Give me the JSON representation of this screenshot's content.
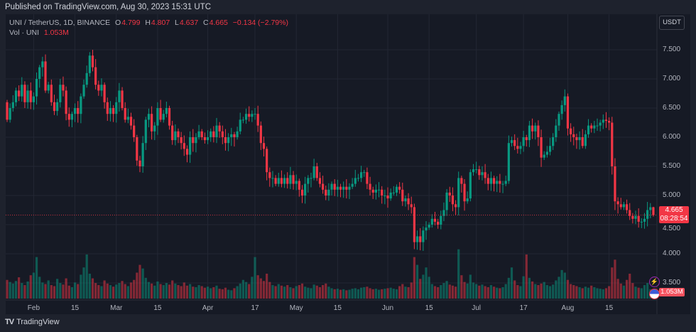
{
  "header": {
    "published": "Published on TradingView.com, Aug 30, 2023 15:31 UTC"
  },
  "legend": {
    "symbol": "UNI / TetherUS, 1D, BINANCE",
    "o_label": "O",
    "o": "4.799",
    "h_label": "H",
    "h": "4.807",
    "l_label": "L",
    "l": "4.637",
    "c_label": "C",
    "c": "4.665",
    "change": "−0.134 (−2.79%)",
    "vol_label": "Vol · UNI",
    "vol": "1.053M"
  },
  "price_axis": {
    "currency_button": "USDT",
    "ticks": [
      "7.500",
      "7.000",
      "6.500",
      "6.000",
      "5.500",
      "5.000",
      "4.500",
      "4.000",
      "3.500"
    ],
    "tick_values": [
      7.5,
      7.0,
      6.5,
      6.0,
      5.5,
      5.0,
      4.5,
      4.0,
      3.5
    ],
    "last_price": "4.665",
    "countdown": "08:28:54",
    "volume_tag": "1.053M"
  },
  "time_axis": {
    "labels": [
      "Feb",
      "15",
      "Mar",
      "15",
      "Apr",
      "17",
      "May",
      "15",
      "Jun",
      "15",
      "Jul",
      "17",
      "Aug",
      "15"
    ],
    "label_day_index": [
      9,
      23,
      37,
      51,
      68,
      84,
      98,
      112,
      129,
      143,
      159,
      175,
      190,
      204
    ]
  },
  "colors": {
    "up": "#089981",
    "down": "#f23645",
    "bg": "#161a25",
    "grid": "#232734"
  },
  "chart_data": {
    "type": "candlestick",
    "title": "UNI / TetherUS, 1D, BINANCE",
    "period": "Jan 23 2023 - Aug 30 2023",
    "first_open": 6.6,
    "close": [
      6.3,
      6.5,
      6.6,
      6.8,
      6.7,
      6.9,
      6.6,
      6.8,
      6.6,
      6.7,
      7.0,
      7.2,
      7.3,
      6.8,
      6.9,
      6.6,
      6.45,
      6.6,
      6.9,
      6.8,
      6.4,
      6.3,
      6.4,
      6.5,
      6.4,
      6.7,
      6.9,
      7.1,
      7.4,
      7.2,
      6.9,
      6.8,
      6.9,
      6.6,
      6.4,
      6.5,
      6.4,
      6.6,
      6.8,
      6.5,
      6.3,
      6.35,
      6.2,
      6.0,
      5.6,
      5.5,
      5.9,
      6.3,
      6.4,
      6.1,
      6.2,
      6.5,
      6.3,
      6.4,
      6.5,
      6.2,
      5.95,
      6.1,
      6.0,
      5.9,
      5.8,
      5.7,
      6.0,
      5.9,
      6.0,
      6.1,
      6.0,
      5.95,
      6.0,
      6.1,
      6.0,
      6.2,
      6.1,
      6.0,
      5.9,
      6.0,
      6.05,
      6.0,
      6.1,
      6.3,
      6.3,
      6.4,
      6.35,
      6.4,
      6.4,
      6.2,
      5.9,
      5.8,
      5.4,
      5.3,
      5.3,
      5.2,
      5.3,
      5.2,
      5.3,
      5.2,
      5.35,
      5.2,
      5.25,
      5.1,
      5.0,
      5.2,
      5.3,
      5.3,
      5.5,
      5.3,
      5.2,
      5.1,
      5.0,
      5.1,
      5.2,
      5.1,
      5.15,
      5.1,
      5.15,
      5.1,
      5.15,
      5.2,
      5.3,
      5.3,
      5.4,
      5.4,
      5.2,
      5.1,
      5.05,
      5.1,
      5.1,
      5.0,
      5.0,
      4.95,
      5.05,
      5.05,
      5.15,
      5.1,
      4.9,
      4.95,
      4.85,
      4.8,
      4.2,
      4.3,
      4.2,
      4.4,
      4.45,
      4.5,
      4.6,
      4.55,
      4.5,
      4.65,
      4.75,
      5.05,
      5.0,
      4.85,
      4.8,
      5.3,
      5.2,
      4.9,
      4.95,
      5.4,
      5.45,
      5.45,
      5.35,
      5.4,
      5.3,
      5.2,
      5.3,
      5.2,
      5.25,
      5.2,
      5.2,
      5.25,
      5.9,
      5.95,
      5.85,
      5.8,
      5.85,
      6.0,
      5.95,
      6.2,
      6.1,
      6.2,
      6.0,
      5.65,
      5.7,
      5.75,
      5.85,
      6.0,
      6.2,
      6.4,
      6.55,
      6.7,
      6.15,
      6.05,
      6.0,
      5.95,
      6.0,
      5.85,
      6.05,
      6.2,
      6.15,
      6.2,
      6.2,
      6.25,
      6.3,
      6.28,
      6.25,
      5.5,
      4.9,
      4.85,
      4.8,
      4.85,
      4.75,
      4.65,
      4.6,
      4.65,
      4.55,
      4.55,
      4.6,
      4.75,
      4.799,
      4.665
    ],
    "volume_millions": [
      3.6,
      3.2,
      2.9,
      3.4,
      4.1,
      3.0,
      2.6,
      3.3,
      4.5,
      5.0,
      8.0,
      4.2,
      3.1,
      2.8,
      3.5,
      2.6,
      2.4,
      3.8,
      3.0,
      2.7,
      3.9,
      2.5,
      2.2,
      3.1,
      2.8,
      4.6,
      6.0,
      8.5,
      4.8,
      3.9,
      3.0,
      2.6,
      2.4,
      3.5,
      2.9,
      2.6,
      2.3,
      2.7,
      3.0,
      3.4,
      2.8,
      2.4,
      3.1,
      3.6,
      5.0,
      6.5,
      5.8,
      4.0,
      3.2,
      2.9,
      2.5,
      3.3,
      2.8,
      2.6,
      3.0,
      2.7,
      3.5,
      2.9,
      2.6,
      2.4,
      3.1,
      2.5,
      2.8,
      2.3,
      2.2,
      2.6,
      2.4,
      2.1,
      2.3,
      2.0,
      2.2,
      2.5,
      1.9,
      1.8,
      2.1,
      1.7,
      1.6,
      2.0,
      2.4,
      2.9,
      3.6,
      3.2,
      2.8,
      4.2,
      8.0,
      4.5,
      3.9,
      3.4,
      4.8,
      3.2,
      2.6,
      2.4,
      2.8,
      2.5,
      2.3,
      2.6,
      2.2,
      2.0,
      2.4,
      2.6,
      2.9,
      2.3,
      2.1,
      2.0,
      2.7,
      2.5,
      2.2,
      2.6,
      2.9,
      2.3,
      2.0,
      1.8,
      1.9,
      1.7,
      1.8,
      1.6,
      1.7,
      1.9,
      2.0,
      1.8,
      2.1,
      2.2,
      2.3,
      2.0,
      1.8,
      1.9,
      1.7,
      1.8,
      1.9,
      2.0,
      2.1,
      1.9,
      1.8,
      2.4,
      2.8,
      2.3,
      2.2,
      3.1,
      8.0,
      6.5,
      3.8,
      4.6,
      6.0,
      4.2,
      2.8,
      2.4,
      2.2,
      2.6,
      3.0,
      3.4,
      2.7,
      2.5,
      2.3,
      9.5,
      4.5,
      3.2,
      2.9,
      4.6,
      3.1,
      2.8,
      2.5,
      2.7,
      2.4,
      2.2,
      2.6,
      2.3,
      2.1,
      2.0,
      2.2,
      2.8,
      4.0,
      6.0,
      3.5,
      2.6,
      2.4,
      4.3,
      8.5,
      4.0,
      3.3,
      2.8,
      2.6,
      2.9,
      3.2,
      2.6,
      2.4,
      2.7,
      3.5,
      4.2,
      5.5,
      5.0,
      3.6,
      2.8,
      2.6,
      2.4,
      2.2,
      2.0,
      2.3,
      2.1,
      2.5,
      2.2,
      2.0,
      1.9,
      1.8,
      2.0,
      2.4,
      6.0,
      7.5,
      3.8,
      2.9,
      2.5,
      3.6,
      4.8,
      3.0,
      2.3,
      2.1,
      2.0,
      2.6,
      3.0,
      1.8,
      1.053
    ],
    "ylim": [
      3.4,
      7.7
    ],
    "last_high": 4.807,
    "last_low": 4.637
  },
  "footer": {
    "logo_text": "TradingView"
  }
}
